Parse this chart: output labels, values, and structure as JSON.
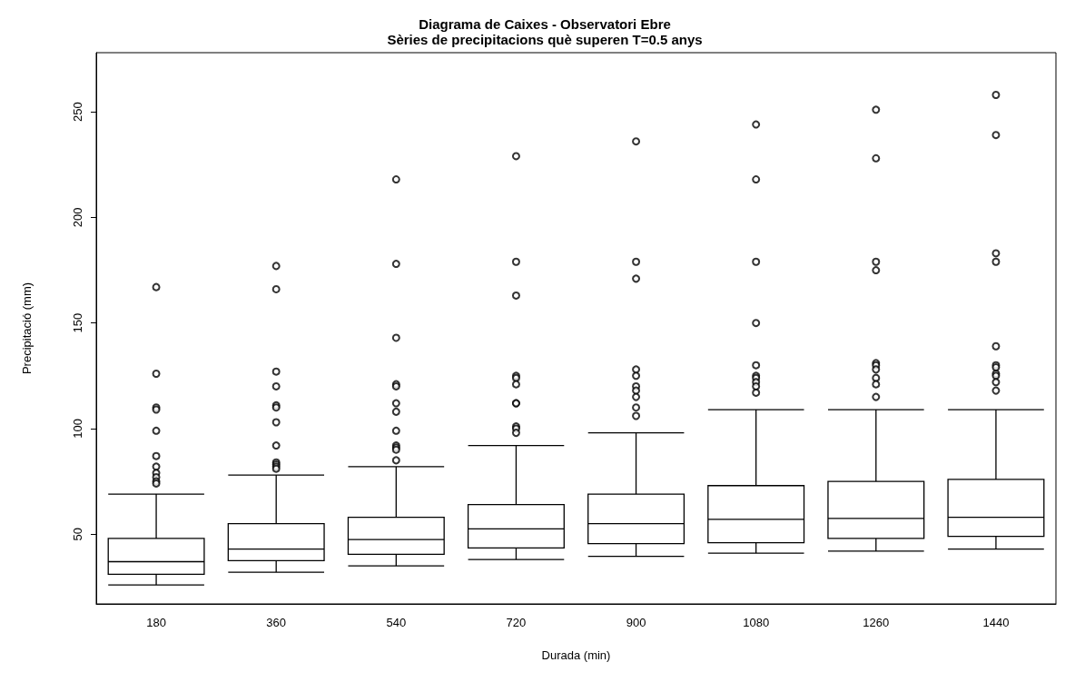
{
  "chart_data": {
    "type": "box",
    "title": "Diagrama de Caixes - Observatori Ebre",
    "subtitle": "Sèries de precipitacions què superen T=0.5 anys",
    "xlabel": "Durada (min)",
    "ylabel": "Precipitació (mm)",
    "categories": [
      "180",
      "360",
      "540",
      "720",
      "900",
      "1080",
      "1260",
      "1440"
    ],
    "boxes": [
      {
        "low": 26,
        "q1": 31,
        "median": 37,
        "q3": 48,
        "high": 69,
        "outliers": [
          167,
          126,
          110,
          109,
          99,
          87,
          82,
          79,
          77,
          75,
          74
        ]
      },
      {
        "low": 32,
        "q1": 37.5,
        "median": 43,
        "q3": 55,
        "high": 78,
        "outliers": [
          177,
          166,
          127,
          120,
          111,
          110,
          103,
          92,
          84,
          83,
          82,
          81
        ]
      },
      {
        "low": 35,
        "q1": 40.5,
        "median": 47.5,
        "q3": 58,
        "high": 82,
        "outliers": [
          218,
          178,
          143,
          121,
          120,
          112,
          108,
          99,
          92,
          91,
          90,
          85
        ]
      },
      {
        "low": 38,
        "q1": 43.5,
        "median": 52.5,
        "q3": 64,
        "high": 92,
        "outliers": [
          229,
          179,
          163,
          125,
          124,
          121,
          112,
          112,
          101,
          100,
          98
        ]
      },
      {
        "low": 39.5,
        "q1": 45.5,
        "median": 55,
        "q3": 69,
        "high": 98,
        "outliers": [
          236,
          179,
          171,
          128,
          125,
          120,
          118,
          115,
          110,
          106
        ]
      },
      {
        "low": 41,
        "q1": 46,
        "median": 57,
        "q3": 73,
        "high": 109,
        "outliers": [
          244,
          218,
          179,
          150,
          130,
          125,
          124,
          122,
          120,
          117
        ]
      },
      {
        "low": 42,
        "q1": 48,
        "median": 57.5,
        "q3": 75,
        "high": 109,
        "outliers": [
          251,
          228,
          179,
          175,
          131,
          130,
          128,
          124,
          121,
          115
        ]
      },
      {
        "low": 43,
        "q1": 49,
        "median": 58,
        "q3": 76,
        "high": 109,
        "outliers": [
          258,
          239,
          183,
          179,
          139,
          130,
          129,
          126,
          125,
          122,
          118
        ]
      }
    ],
    "ylim": [
      17,
      278
    ],
    "yticks": [
      50,
      100,
      150,
      200,
      250
    ]
  }
}
